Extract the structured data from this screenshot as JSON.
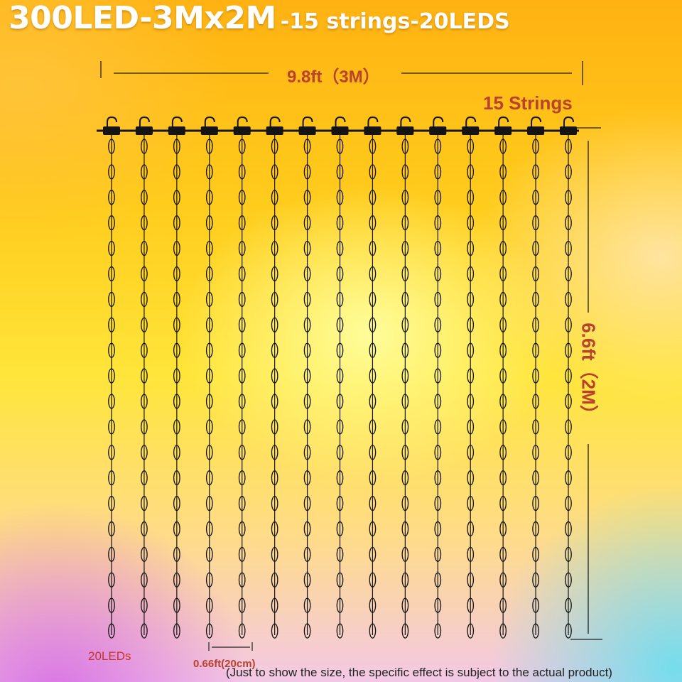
{
  "title": {
    "main": "300LED-3Mx2M",
    "sub": "-15 strings-20LEDS"
  },
  "dimensions": {
    "width_label": "9.8ft（3M）",
    "strings_label": "15 Strings",
    "height_label": "6.6ft（2M）",
    "leds_label": "20LEDs",
    "spacing_label": "0.66ft(20cm)"
  },
  "note": "(Just to show the size, the specific effect is subject to the actual product)",
  "specs": {
    "string_count": 15,
    "leds_per_string": 20
  },
  "colors": {
    "label_red": "#b8422d",
    "title_white": "#ffffff",
    "wire_dark": "#141414"
  }
}
